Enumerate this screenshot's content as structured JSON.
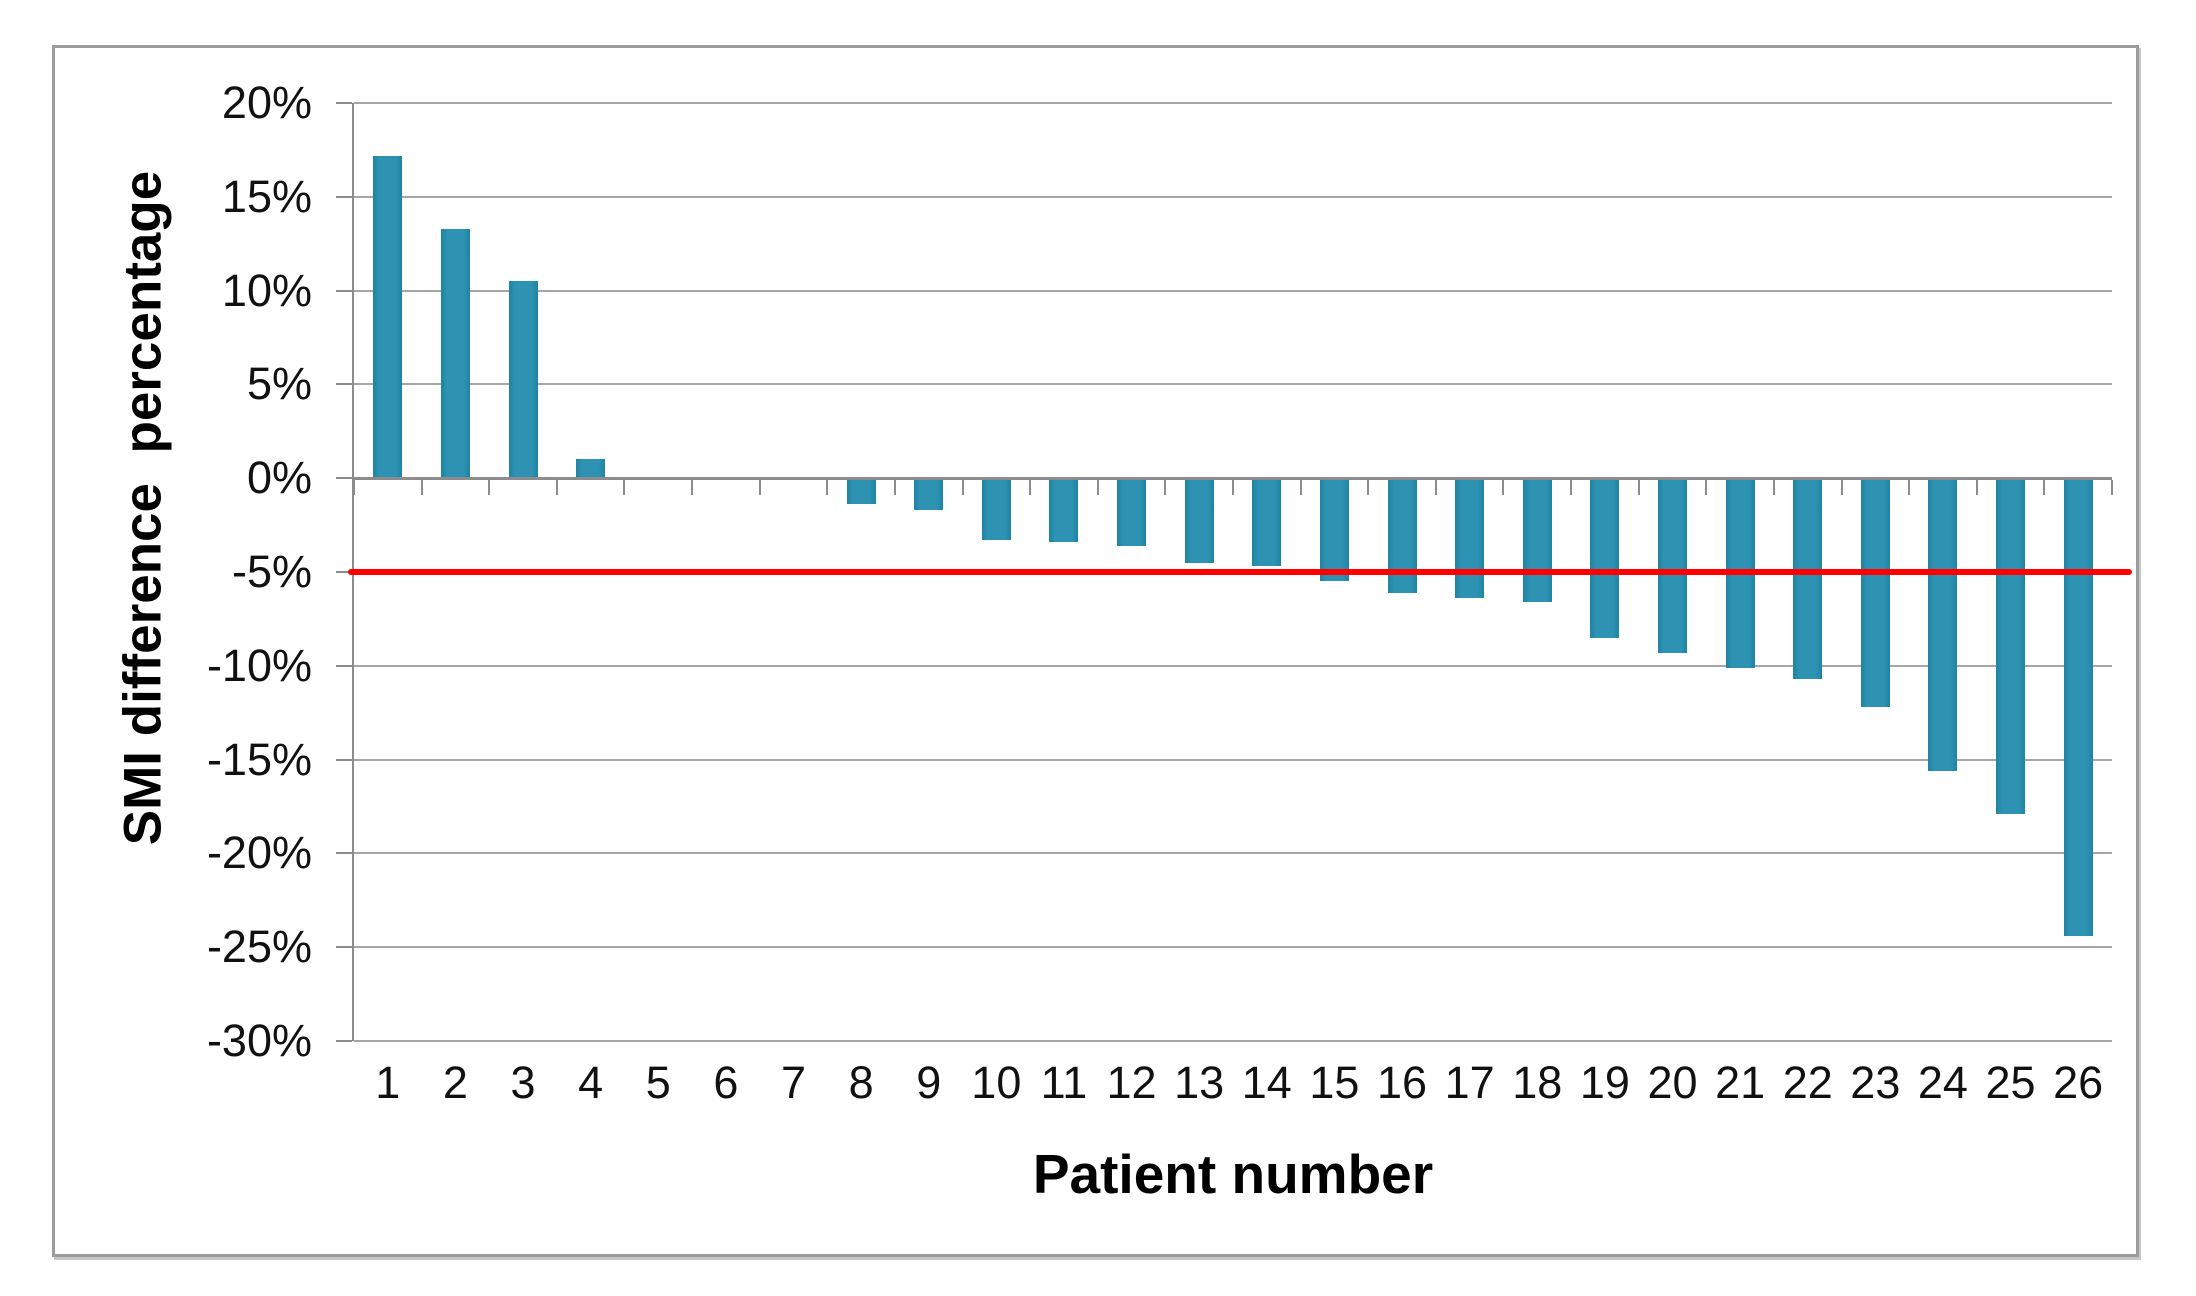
{
  "figure": {
    "background": "#ffffff",
    "border_color": "#9c9c9c"
  },
  "chart_data": {
    "type": "bar",
    "title": "",
    "xlabel": "Patient number",
    "ylabel": "SMI difference  percentage",
    "categories": [
      "1",
      "2",
      "3",
      "4",
      "5",
      "6",
      "7",
      "8",
      "9",
      "10",
      "11",
      "12",
      "13",
      "14",
      "15",
      "16",
      "17",
      "18",
      "19",
      "20",
      "21",
      "22",
      "23",
      "24",
      "25",
      "26"
    ],
    "values": [
      17.2,
      13.3,
      10.5,
      1.0,
      0,
      0,
      0,
      -1.4,
      -1.7,
      -3.3,
      -3.4,
      -3.6,
      -4.5,
      -4.7,
      -5.5,
      -6.1,
      -6.4,
      -6.6,
      -8.5,
      -9.3,
      -10.1,
      -10.7,
      -12.2,
      -15.6,
      -17.9,
      -24.4
    ],
    "ylim": [
      -30,
      20
    ],
    "ytick_interval": 5,
    "ytick_labels": [
      "20%",
      "15%",
      "10%",
      "5%",
      "0%",
      "-5%",
      "-10%",
      "-15%",
      "-20%",
      "-25%",
      "-30%"
    ],
    "reference_line": {
      "value": -5,
      "color": "#ff0000"
    },
    "bar_color": "#2e93b2",
    "gridline_color": "#a6a6a6",
    "axis_color": "#8c8c8c",
    "grid": true,
    "legend": "none"
  }
}
